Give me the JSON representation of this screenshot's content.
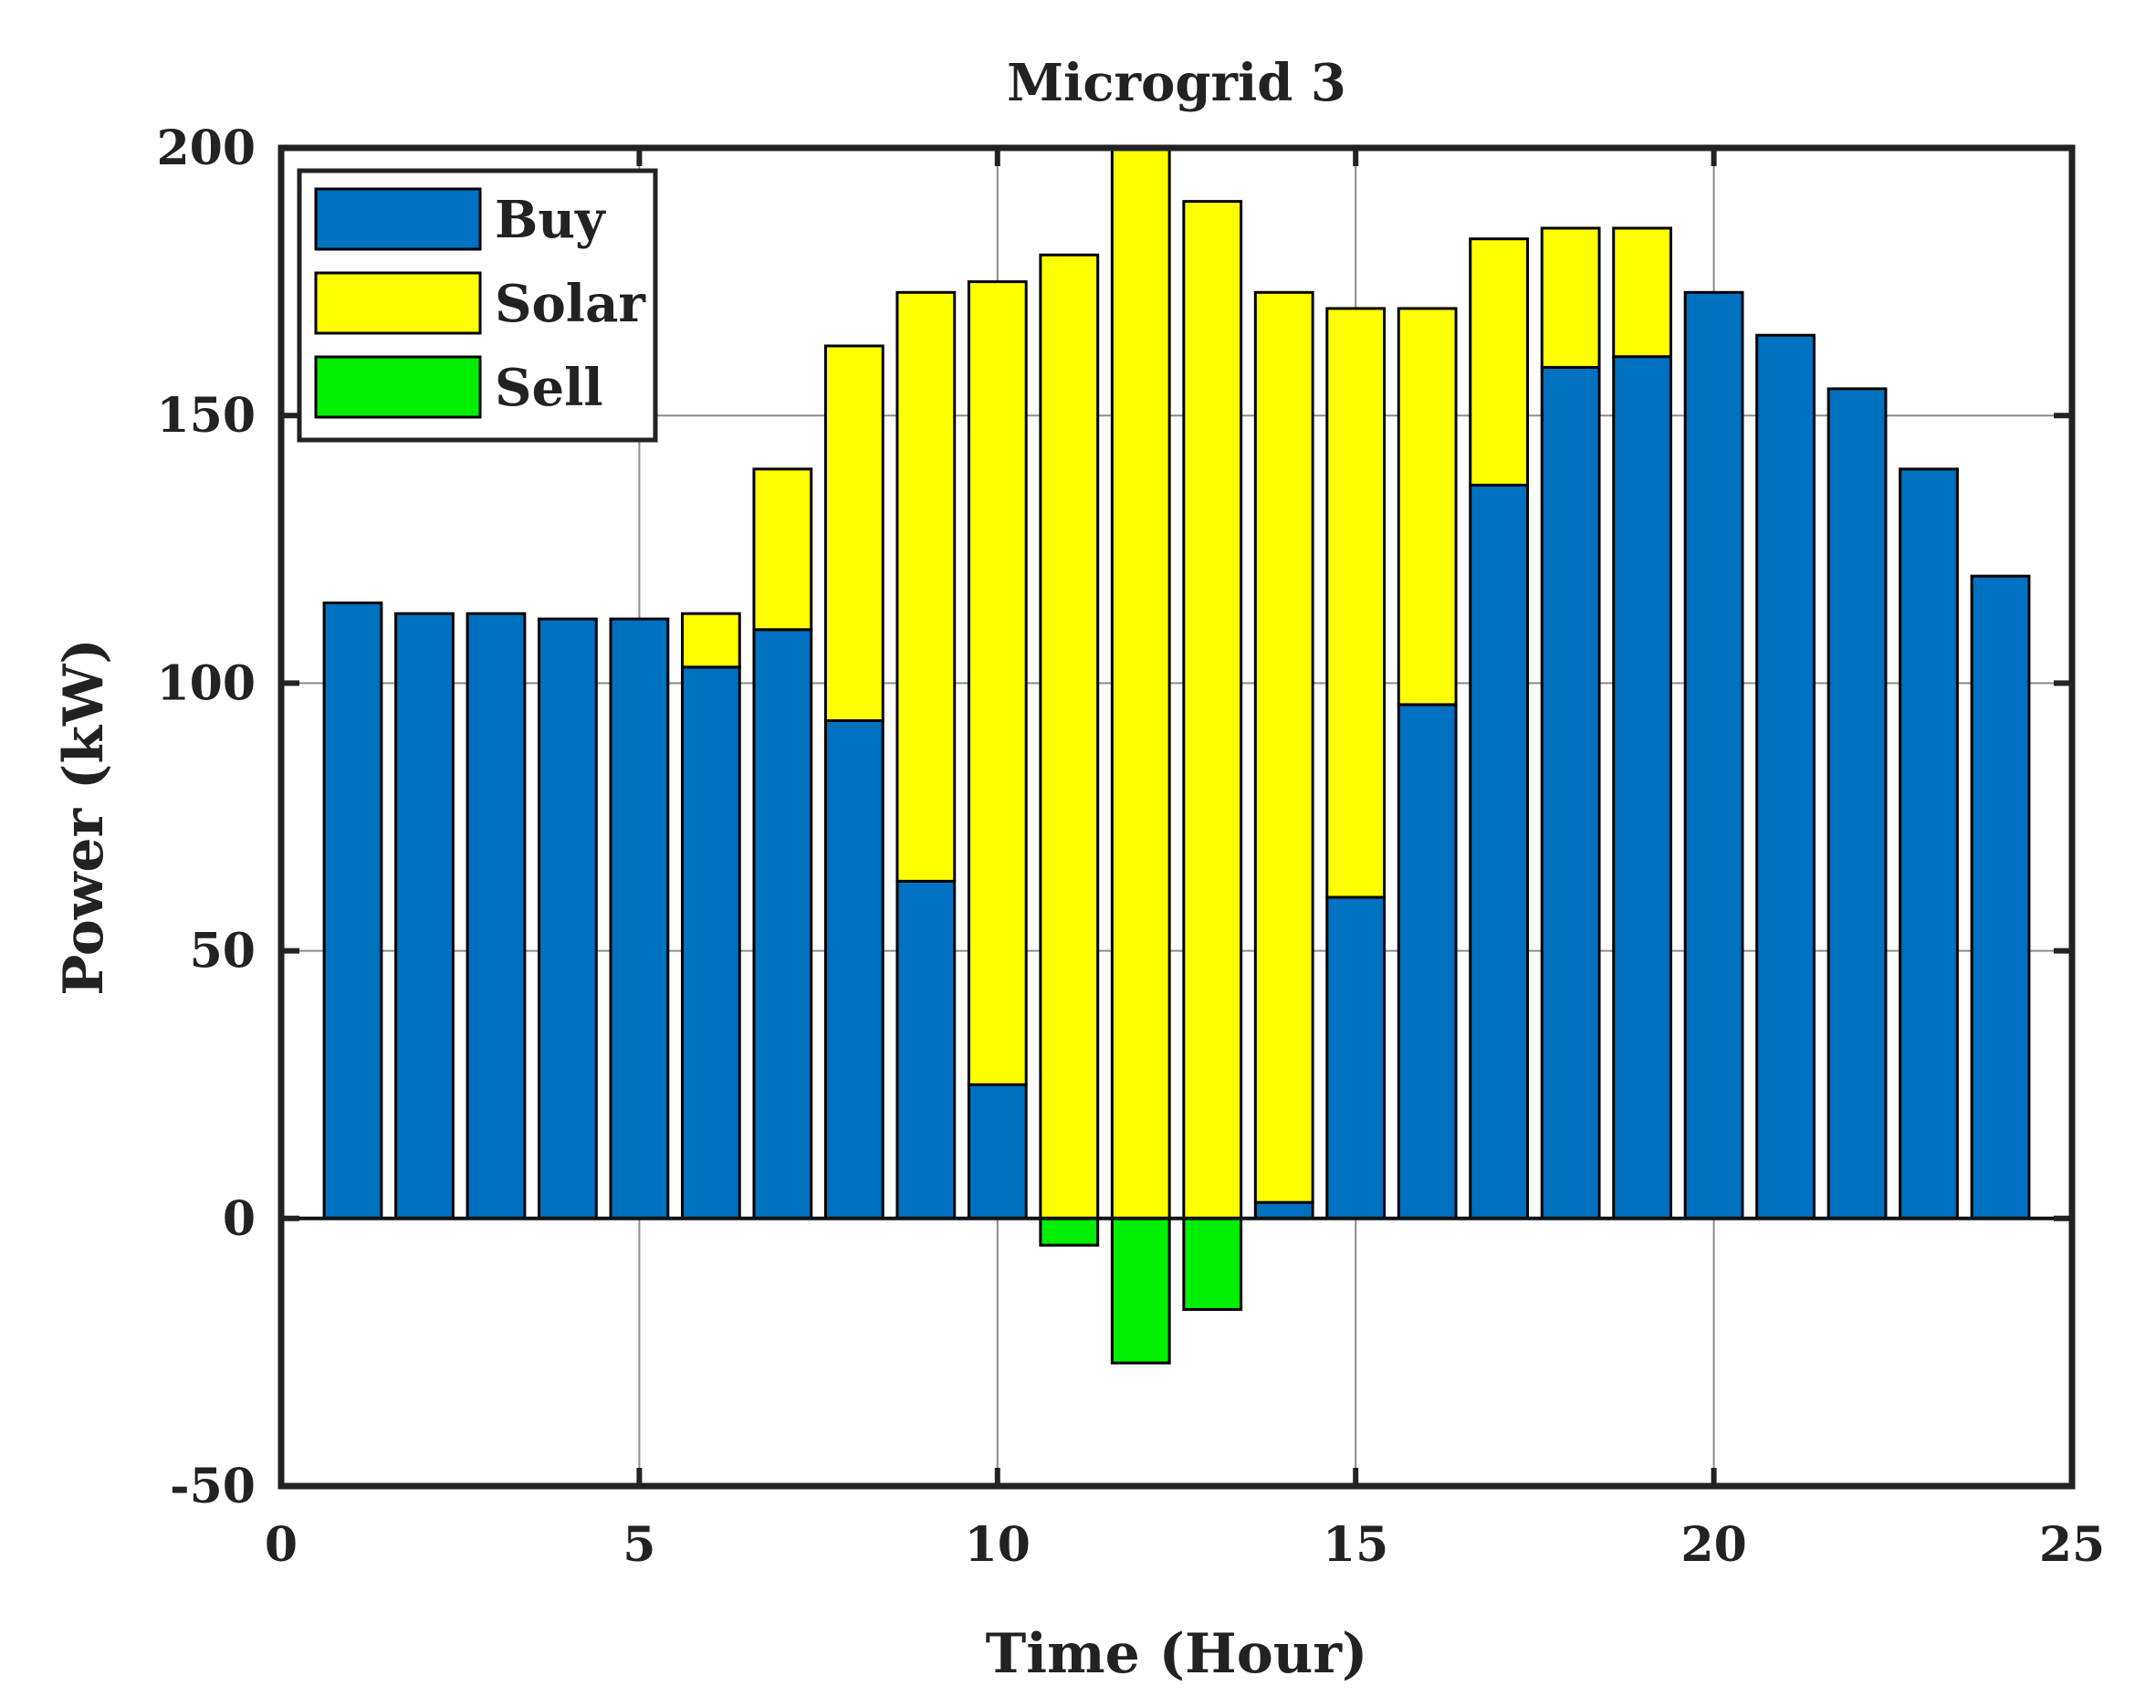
{
  "chart_data": {
    "type": "bar",
    "stacked": true,
    "title": "Microgrid 3",
    "xlabel": "Time (Hour)",
    "ylabel": "Power (kW)",
    "xlim": [
      0,
      25
    ],
    "ylim": [
      -50,
      200
    ],
    "xticks": [
      0,
      5,
      10,
      15,
      20,
      25
    ],
    "yticks": [
      -50,
      0,
      50,
      100,
      150,
      200
    ],
    "grid": true,
    "legend_position": "top-left",
    "x": [
      1,
      2,
      3,
      4,
      5,
      6,
      7,
      8,
      9,
      10,
      11,
      12,
      13,
      14,
      15,
      16,
      17,
      18,
      19,
      20,
      21,
      22,
      23,
      24
    ],
    "series": [
      {
        "name": "Buy",
        "color": "#0070C0",
        "values": [
          115,
          113,
          113,
          112,
          112,
          103,
          110,
          93,
          63,
          25,
          0,
          0,
          0,
          3,
          60,
          96,
          137,
          159,
          161,
          173,
          165,
          155,
          140,
          120
        ]
      },
      {
        "name": "Solar",
        "color": "#FFFF00",
        "values": [
          0,
          0,
          0,
          0,
          0,
          10,
          30,
          70,
          110,
          150,
          180,
          200,
          190,
          170,
          110,
          74,
          46,
          26,
          24,
          0,
          0,
          0,
          0,
          0
        ]
      },
      {
        "name": "Sell",
        "color": "#00EE00",
        "values": [
          0,
          0,
          0,
          0,
          0,
          0,
          0,
          0,
          0,
          0,
          -5,
          -27,
          -17,
          0,
          0,
          0,
          0,
          0,
          0,
          0,
          0,
          0,
          0,
          0
        ]
      }
    ]
  }
}
